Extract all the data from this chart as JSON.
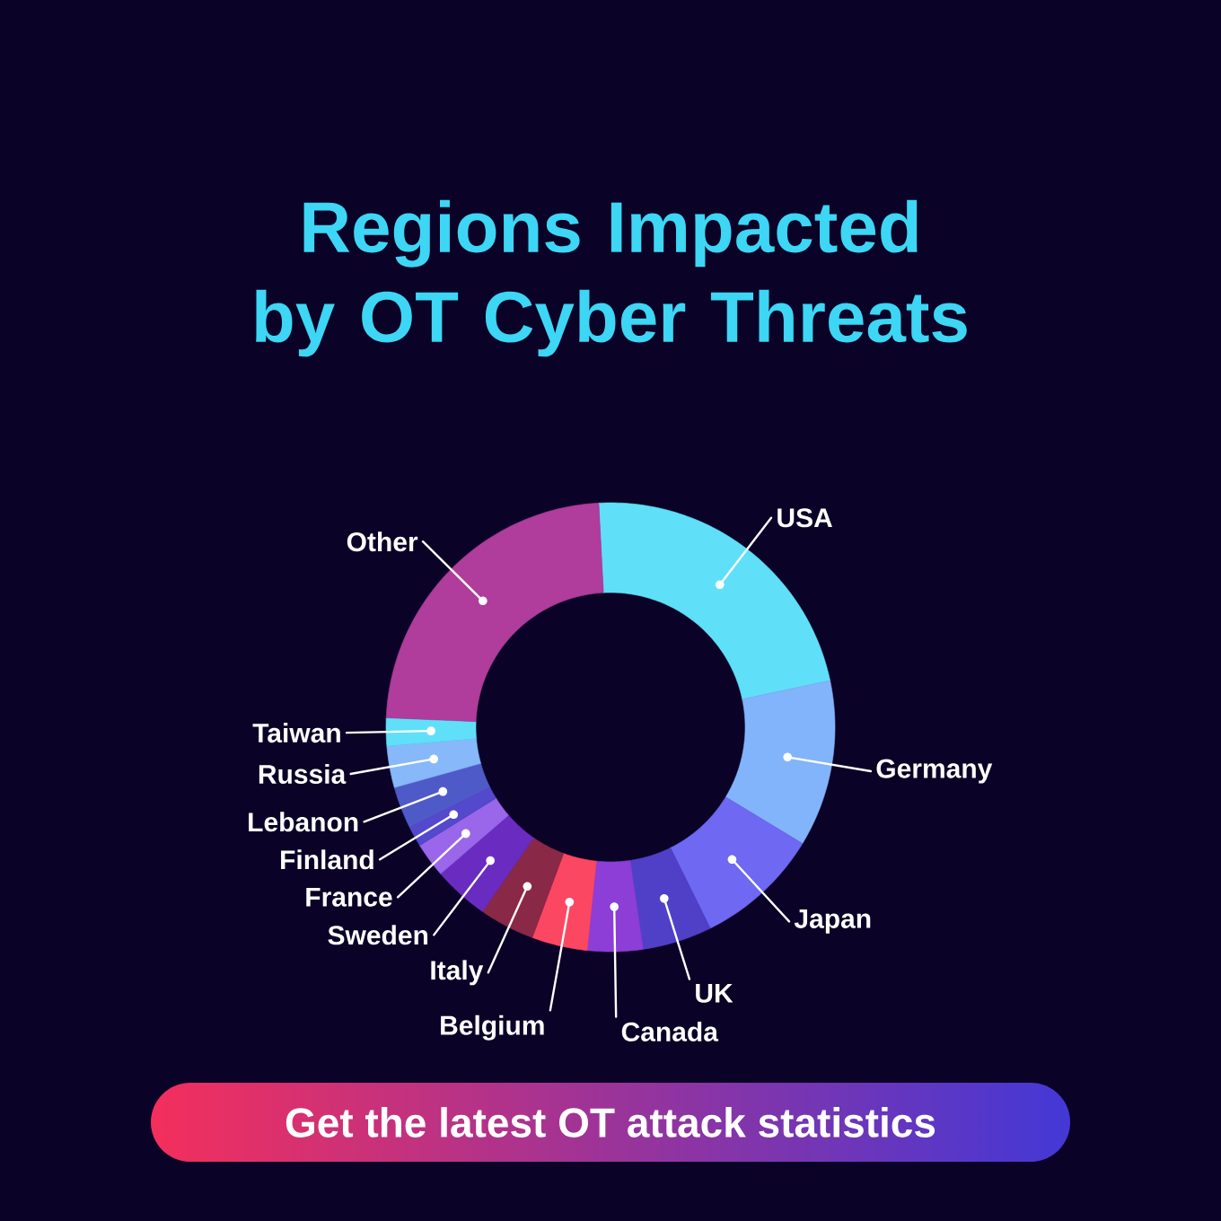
{
  "chart_data": {
    "type": "donut",
    "title": "Regions Impacted by OT Cyber Threats",
    "categories": [
      "USA",
      "Germany",
      "Japan",
      "UK",
      "Canada",
      "Belgium",
      "Italy",
      "Sweden",
      "France",
      "Finland",
      "Lebanon",
      "Russia",
      "Taiwan",
      "Other"
    ],
    "values": [
      22.5,
      12,
      9,
      5,
      4,
      4,
      4,
      4,
      2.5,
      1.5,
      3,
      3,
      2,
      23.5
    ],
    "colors": [
      "#5fe0f8",
      "#82b4fb",
      "#6e68f2",
      "#5040c8",
      "#8c3ed6",
      "#fc4763",
      "#8a2848",
      "#6a2cc0",
      "#9a66ea",
      "#5448cc",
      "#4f5ac9",
      "#86b8fa",
      "#5fe0f8",
      "#b03c9c"
    ],
    "annotations": [
      "Get the latest OT attack statistics"
    ]
  }
}
